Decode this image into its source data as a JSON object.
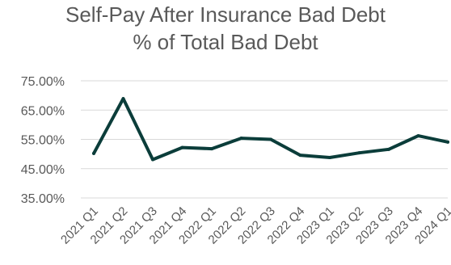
{
  "chart_data": {
    "type": "line",
    "title_lines": [
      "Self-Pay After Insurance Bad Debt",
      "% of Total Bad Debt"
    ],
    "xlabel": "",
    "ylabel": "",
    "categories": [
      "2021 Q1",
      "2021 Q2",
      "2021 Q3",
      "2021 Q4",
      "2022 Q1",
      "2022 Q2",
      "2022 Q3",
      "2022 Q4",
      "2023 Q1",
      "2023 Q2",
      "2023 Q3",
      "2023 Q4",
      "2024 Q1"
    ],
    "y_ticks": [
      "75.00%",
      "65.00%",
      "55.00%",
      "45.00%",
      "35.00%"
    ],
    "ylim": [
      35,
      75
    ],
    "grid": true,
    "legend": "none",
    "series": [
      {
        "values": [
          50.2,
          68.9,
          48.1,
          52.2,
          51.8,
          55.4,
          55.0,
          49.6,
          48.8,
          50.4,
          51.6,
          56.2,
          54.1
        ]
      }
    ],
    "colors": {
      "line": "#0b3d3a",
      "grid": "#d9d9d9",
      "text": "#595959"
    }
  }
}
